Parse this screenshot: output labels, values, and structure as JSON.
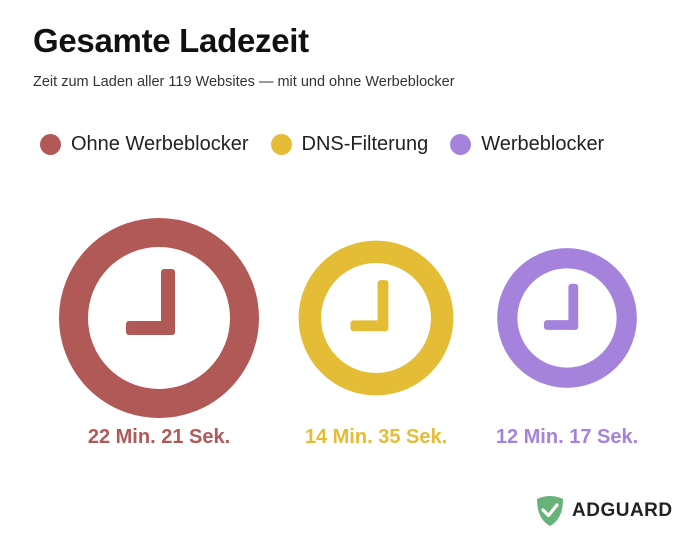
{
  "header": {
    "title": "Gesamte Ladezeit",
    "subtitle": "Zeit zum Laden aller 119 Websites — mit und ohne Werbeblocker"
  },
  "chart_data": {
    "type": "bar",
    "title": "Gesamte Ladezeit",
    "subtitle": "Zeit zum Laden aller 119 Websites — mit und ohne Werbeblocker",
    "legend_placement": "top",
    "categories": [
      "Ohne Werbeblocker",
      "DNS-Filterung",
      "Werbeblocker"
    ],
    "series": [
      {
        "name": "Ohne Werbeblocker",
        "minutes": 22,
        "seconds": 21,
        "label": "22 Min. 21 Sek.",
        "color": "#B15957"
      },
      {
        "name": "DNS-Filterung",
        "minutes": 14,
        "seconds": 35,
        "label": "14 Min. 35 Sek.",
        "color": "#E4BC35"
      },
      {
        "name": "Werbeblocker",
        "minutes": 12,
        "seconds": 17,
        "label": "12 Min. 17 Sek.",
        "color": "#A583DC"
      }
    ],
    "mark": "clock-icon"
  },
  "logo": {
    "text": "ADGUARD",
    "icon": "shield-check-icon",
    "color": "#67B279"
  }
}
